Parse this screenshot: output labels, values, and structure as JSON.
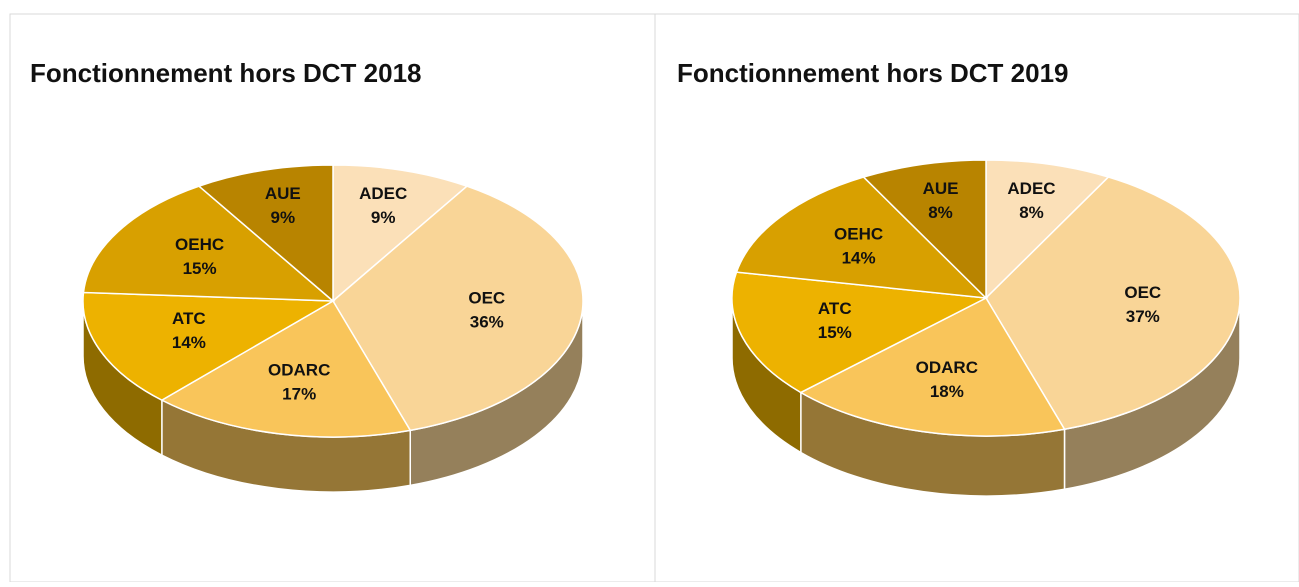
{
  "chart_data": [
    {
      "type": "pie",
      "title": "Fonctionnement hors DCT 2018",
      "categories": [
        "ADEC",
        "OEC",
        "ODARC",
        "ATC",
        "OEHC",
        "AUE"
      ],
      "values": [
        9,
        36,
        17,
        14,
        15,
        9
      ],
      "value_labels": [
        "9%",
        "36%",
        "17%",
        "14%",
        "15%",
        "9%"
      ],
      "colors": [
        "#fbe0b8",
        "#f9d597",
        "#f9c55a",
        "#edb200",
        "#d8a000",
        "#b88400"
      ]
    },
    {
      "type": "pie",
      "title": "Fonctionnement hors DCT 2019",
      "categories": [
        "ADEC",
        "OEC",
        "ODARC",
        "ATC",
        "OEHC",
        "AUE"
      ],
      "values": [
        8,
        37,
        18,
        15,
        14,
        8
      ],
      "value_labels": [
        "8%",
        "37%",
        "18%",
        "15%",
        "14%",
        "8%"
      ],
      "colors": [
        "#fbe0b8",
        "#f9d597",
        "#f9c55a",
        "#edb200",
        "#d8a000",
        "#b88400"
      ]
    }
  ]
}
